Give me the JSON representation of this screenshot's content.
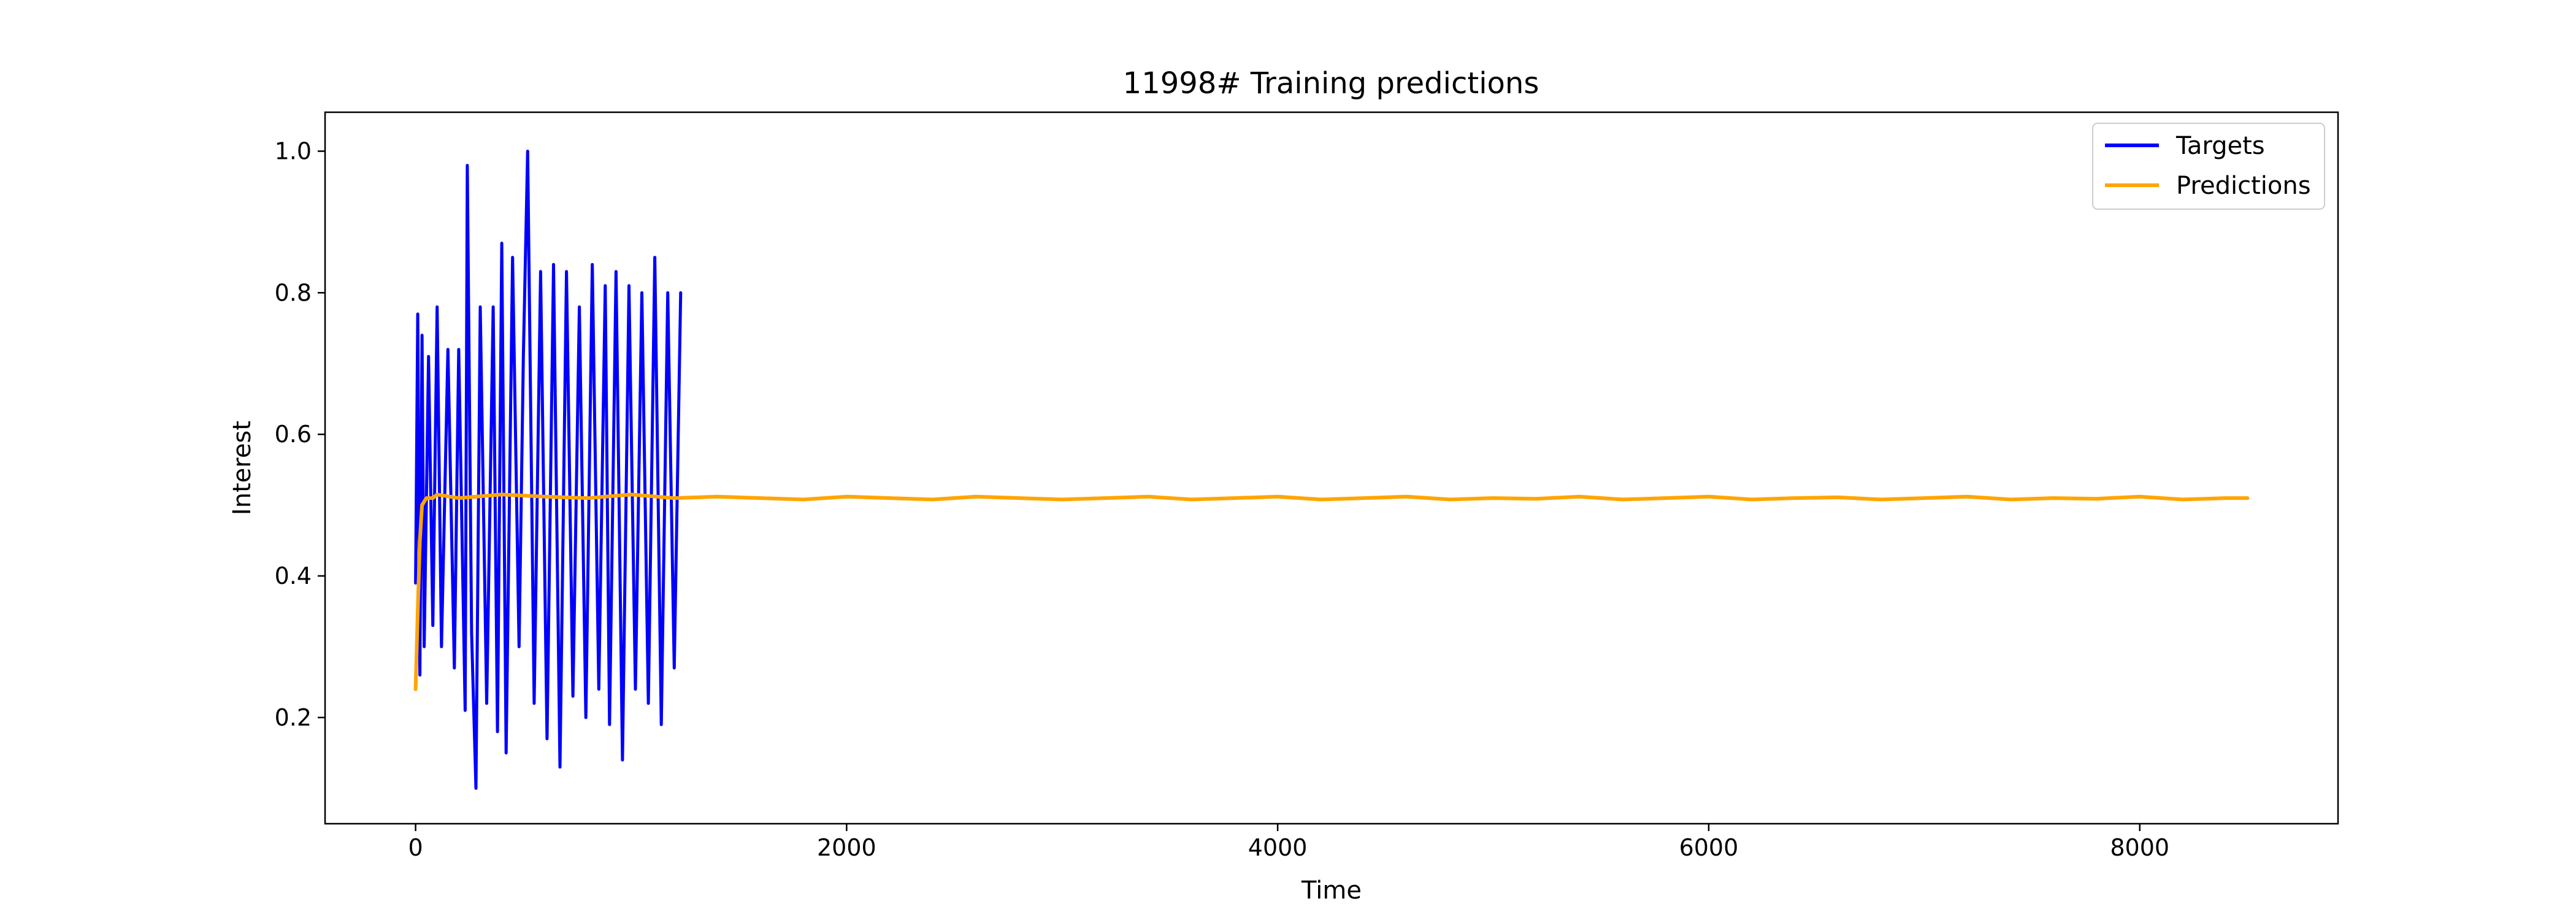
{
  "chart_data": {
    "type": "line",
    "title": "11998# Training predictions",
    "xlabel": "Time",
    "ylabel": "Interest",
    "xlim": [
      -420,
      8920
    ],
    "ylim": [
      0.05,
      1.055
    ],
    "x_ticks": [
      0,
      2000,
      4000,
      6000,
      8000
    ],
    "x_tick_labels": [
      "0",
      "2000",
      "4000",
      "6000",
      "8000"
    ],
    "y_ticks": [
      0.2,
      0.4,
      0.6,
      0.8,
      1.0
    ],
    "y_tick_labels": [
      "0.2",
      "0.4",
      "0.6",
      "0.8",
      "1.0"
    ],
    "grid": false,
    "legend_position": "top-right",
    "series": [
      {
        "name": "Targets",
        "color": "#0000ff",
        "x": [
          0,
          10,
          20,
          30,
          40,
          60,
          80,
          100,
          120,
          150,
          180,
          200,
          230,
          240,
          260,
          280,
          300,
          330,
          360,
          380,
          400,
          420,
          450,
          480,
          500,
          520,
          550,
          580,
          610,
          640,
          670,
          700,
          730,
          760,
          790,
          820,
          850,
          880,
          900,
          930,
          960,
          990,
          1020,
          1050,
          1080,
          1110,
          1140,
          1170,
          1200,
          1230
        ],
        "values": [
          0.39,
          0.77,
          0.26,
          0.74,
          0.3,
          0.71,
          0.33,
          0.78,
          0.3,
          0.72,
          0.27,
          0.72,
          0.21,
          0.98,
          0.32,
          0.1,
          0.78,
          0.22,
          0.78,
          0.18,
          0.87,
          0.15,
          0.85,
          0.3,
          0.71,
          1.0,
          0.22,
          0.83,
          0.17,
          0.84,
          0.13,
          0.83,
          0.23,
          0.78,
          0.2,
          0.84,
          0.24,
          0.81,
          0.19,
          0.83,
          0.14,
          0.81,
          0.24,
          0.8,
          0.22,
          0.85,
          0.19,
          0.8,
          0.27,
          0.8
        ]
      },
      {
        "name": "Predictions",
        "color": "#ffa500",
        "x": [
          0,
          10,
          20,
          30,
          50,
          80,
          100,
          200,
          400,
          600,
          800,
          1000,
          1200,
          1400,
          1600,
          1800,
          2000,
          2200,
          2400,
          2600,
          2800,
          3000,
          3200,
          3400,
          3600,
          3800,
          4000,
          4200,
          4400,
          4600,
          4800,
          5000,
          5200,
          5400,
          5600,
          5800,
          6000,
          6200,
          6400,
          6600,
          6800,
          7000,
          7200,
          7400,
          7600,
          7800,
          8000,
          8200,
          8400,
          8500
        ],
        "values": [
          0.24,
          0.35,
          0.45,
          0.5,
          0.51,
          0.51,
          0.515,
          0.51,
          0.515,
          0.512,
          0.51,
          0.515,
          0.51,
          0.512,
          0.51,
          0.508,
          0.512,
          0.51,
          0.508,
          0.512,
          0.51,
          0.508,
          0.51,
          0.512,
          0.508,
          0.51,
          0.512,
          0.508,
          0.51,
          0.512,
          0.508,
          0.51,
          0.509,
          0.512,
          0.508,
          0.51,
          0.512,
          0.508,
          0.51,
          0.511,
          0.508,
          0.51,
          0.512,
          0.508,
          0.51,
          0.509,
          0.512,
          0.508,
          0.51,
          0.51
        ]
      }
    ]
  }
}
